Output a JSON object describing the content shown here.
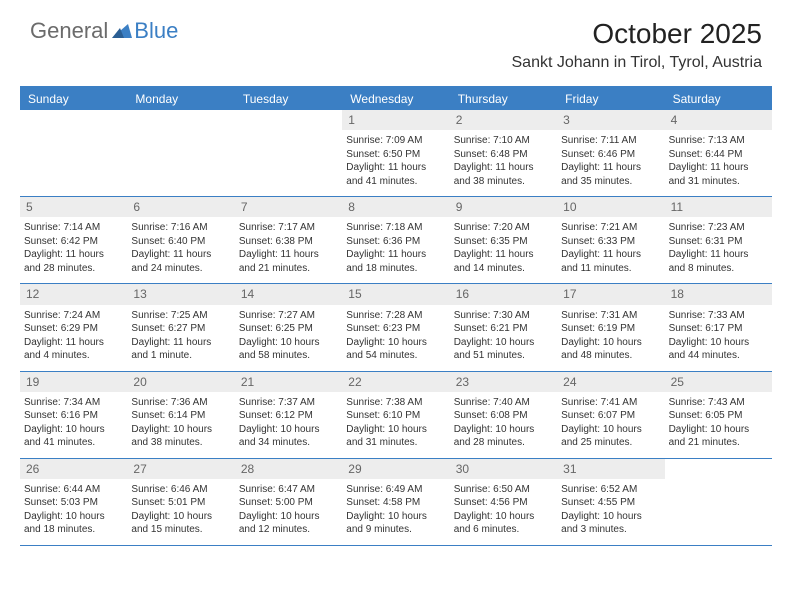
{
  "logo": {
    "part1": "General",
    "part2": "Blue"
  },
  "title": "October 2025",
  "location": "Sankt Johann in Tirol, Tyrol, Austria",
  "colors": {
    "accent": "#3b7fc4",
    "header_text": "#ffffff",
    "daynum_bg": "#ededed",
    "daynum_fg": "#666666",
    "body_text": "#333333",
    "logo_gray": "#6b6b6b"
  },
  "days_of_week": [
    "Sunday",
    "Monday",
    "Tuesday",
    "Wednesday",
    "Thursday",
    "Friday",
    "Saturday"
  ],
  "weeks": [
    [
      null,
      null,
      null,
      {
        "n": "1",
        "sr": "Sunrise: 7:09 AM",
        "ss": "Sunset: 6:50 PM",
        "d1": "Daylight: 11 hours",
        "d2": "and 41 minutes."
      },
      {
        "n": "2",
        "sr": "Sunrise: 7:10 AM",
        "ss": "Sunset: 6:48 PM",
        "d1": "Daylight: 11 hours",
        "d2": "and 38 minutes."
      },
      {
        "n": "3",
        "sr": "Sunrise: 7:11 AM",
        "ss": "Sunset: 6:46 PM",
        "d1": "Daylight: 11 hours",
        "d2": "and 35 minutes."
      },
      {
        "n": "4",
        "sr": "Sunrise: 7:13 AM",
        "ss": "Sunset: 6:44 PM",
        "d1": "Daylight: 11 hours",
        "d2": "and 31 minutes."
      }
    ],
    [
      {
        "n": "5",
        "sr": "Sunrise: 7:14 AM",
        "ss": "Sunset: 6:42 PM",
        "d1": "Daylight: 11 hours",
        "d2": "and 28 minutes."
      },
      {
        "n": "6",
        "sr": "Sunrise: 7:16 AM",
        "ss": "Sunset: 6:40 PM",
        "d1": "Daylight: 11 hours",
        "d2": "and 24 minutes."
      },
      {
        "n": "7",
        "sr": "Sunrise: 7:17 AM",
        "ss": "Sunset: 6:38 PM",
        "d1": "Daylight: 11 hours",
        "d2": "and 21 minutes."
      },
      {
        "n": "8",
        "sr": "Sunrise: 7:18 AM",
        "ss": "Sunset: 6:36 PM",
        "d1": "Daylight: 11 hours",
        "d2": "and 18 minutes."
      },
      {
        "n": "9",
        "sr": "Sunrise: 7:20 AM",
        "ss": "Sunset: 6:35 PM",
        "d1": "Daylight: 11 hours",
        "d2": "and 14 minutes."
      },
      {
        "n": "10",
        "sr": "Sunrise: 7:21 AM",
        "ss": "Sunset: 6:33 PM",
        "d1": "Daylight: 11 hours",
        "d2": "and 11 minutes."
      },
      {
        "n": "11",
        "sr": "Sunrise: 7:23 AM",
        "ss": "Sunset: 6:31 PM",
        "d1": "Daylight: 11 hours",
        "d2": "and 8 minutes."
      }
    ],
    [
      {
        "n": "12",
        "sr": "Sunrise: 7:24 AM",
        "ss": "Sunset: 6:29 PM",
        "d1": "Daylight: 11 hours",
        "d2": "and 4 minutes."
      },
      {
        "n": "13",
        "sr": "Sunrise: 7:25 AM",
        "ss": "Sunset: 6:27 PM",
        "d1": "Daylight: 11 hours",
        "d2": "and 1 minute."
      },
      {
        "n": "14",
        "sr": "Sunrise: 7:27 AM",
        "ss": "Sunset: 6:25 PM",
        "d1": "Daylight: 10 hours",
        "d2": "and 58 minutes."
      },
      {
        "n": "15",
        "sr": "Sunrise: 7:28 AM",
        "ss": "Sunset: 6:23 PM",
        "d1": "Daylight: 10 hours",
        "d2": "and 54 minutes."
      },
      {
        "n": "16",
        "sr": "Sunrise: 7:30 AM",
        "ss": "Sunset: 6:21 PM",
        "d1": "Daylight: 10 hours",
        "d2": "and 51 minutes."
      },
      {
        "n": "17",
        "sr": "Sunrise: 7:31 AM",
        "ss": "Sunset: 6:19 PM",
        "d1": "Daylight: 10 hours",
        "d2": "and 48 minutes."
      },
      {
        "n": "18",
        "sr": "Sunrise: 7:33 AM",
        "ss": "Sunset: 6:17 PM",
        "d1": "Daylight: 10 hours",
        "d2": "and 44 minutes."
      }
    ],
    [
      {
        "n": "19",
        "sr": "Sunrise: 7:34 AM",
        "ss": "Sunset: 6:16 PM",
        "d1": "Daylight: 10 hours",
        "d2": "and 41 minutes."
      },
      {
        "n": "20",
        "sr": "Sunrise: 7:36 AM",
        "ss": "Sunset: 6:14 PM",
        "d1": "Daylight: 10 hours",
        "d2": "and 38 minutes."
      },
      {
        "n": "21",
        "sr": "Sunrise: 7:37 AM",
        "ss": "Sunset: 6:12 PM",
        "d1": "Daylight: 10 hours",
        "d2": "and 34 minutes."
      },
      {
        "n": "22",
        "sr": "Sunrise: 7:38 AM",
        "ss": "Sunset: 6:10 PM",
        "d1": "Daylight: 10 hours",
        "d2": "and 31 minutes."
      },
      {
        "n": "23",
        "sr": "Sunrise: 7:40 AM",
        "ss": "Sunset: 6:08 PM",
        "d1": "Daylight: 10 hours",
        "d2": "and 28 minutes."
      },
      {
        "n": "24",
        "sr": "Sunrise: 7:41 AM",
        "ss": "Sunset: 6:07 PM",
        "d1": "Daylight: 10 hours",
        "d2": "and 25 minutes."
      },
      {
        "n": "25",
        "sr": "Sunrise: 7:43 AM",
        "ss": "Sunset: 6:05 PM",
        "d1": "Daylight: 10 hours",
        "d2": "and 21 minutes."
      }
    ],
    [
      {
        "n": "26",
        "sr": "Sunrise: 6:44 AM",
        "ss": "Sunset: 5:03 PM",
        "d1": "Daylight: 10 hours",
        "d2": "and 18 minutes."
      },
      {
        "n": "27",
        "sr": "Sunrise: 6:46 AM",
        "ss": "Sunset: 5:01 PM",
        "d1": "Daylight: 10 hours",
        "d2": "and 15 minutes."
      },
      {
        "n": "28",
        "sr": "Sunrise: 6:47 AM",
        "ss": "Sunset: 5:00 PM",
        "d1": "Daylight: 10 hours",
        "d2": "and 12 minutes."
      },
      {
        "n": "29",
        "sr": "Sunrise: 6:49 AM",
        "ss": "Sunset: 4:58 PM",
        "d1": "Daylight: 10 hours",
        "d2": "and 9 minutes."
      },
      {
        "n": "30",
        "sr": "Sunrise: 6:50 AM",
        "ss": "Sunset: 4:56 PM",
        "d1": "Daylight: 10 hours",
        "d2": "and 6 minutes."
      },
      {
        "n": "31",
        "sr": "Sunrise: 6:52 AM",
        "ss": "Sunset: 4:55 PM",
        "d1": "Daylight: 10 hours",
        "d2": "and 3 minutes."
      },
      null
    ]
  ]
}
